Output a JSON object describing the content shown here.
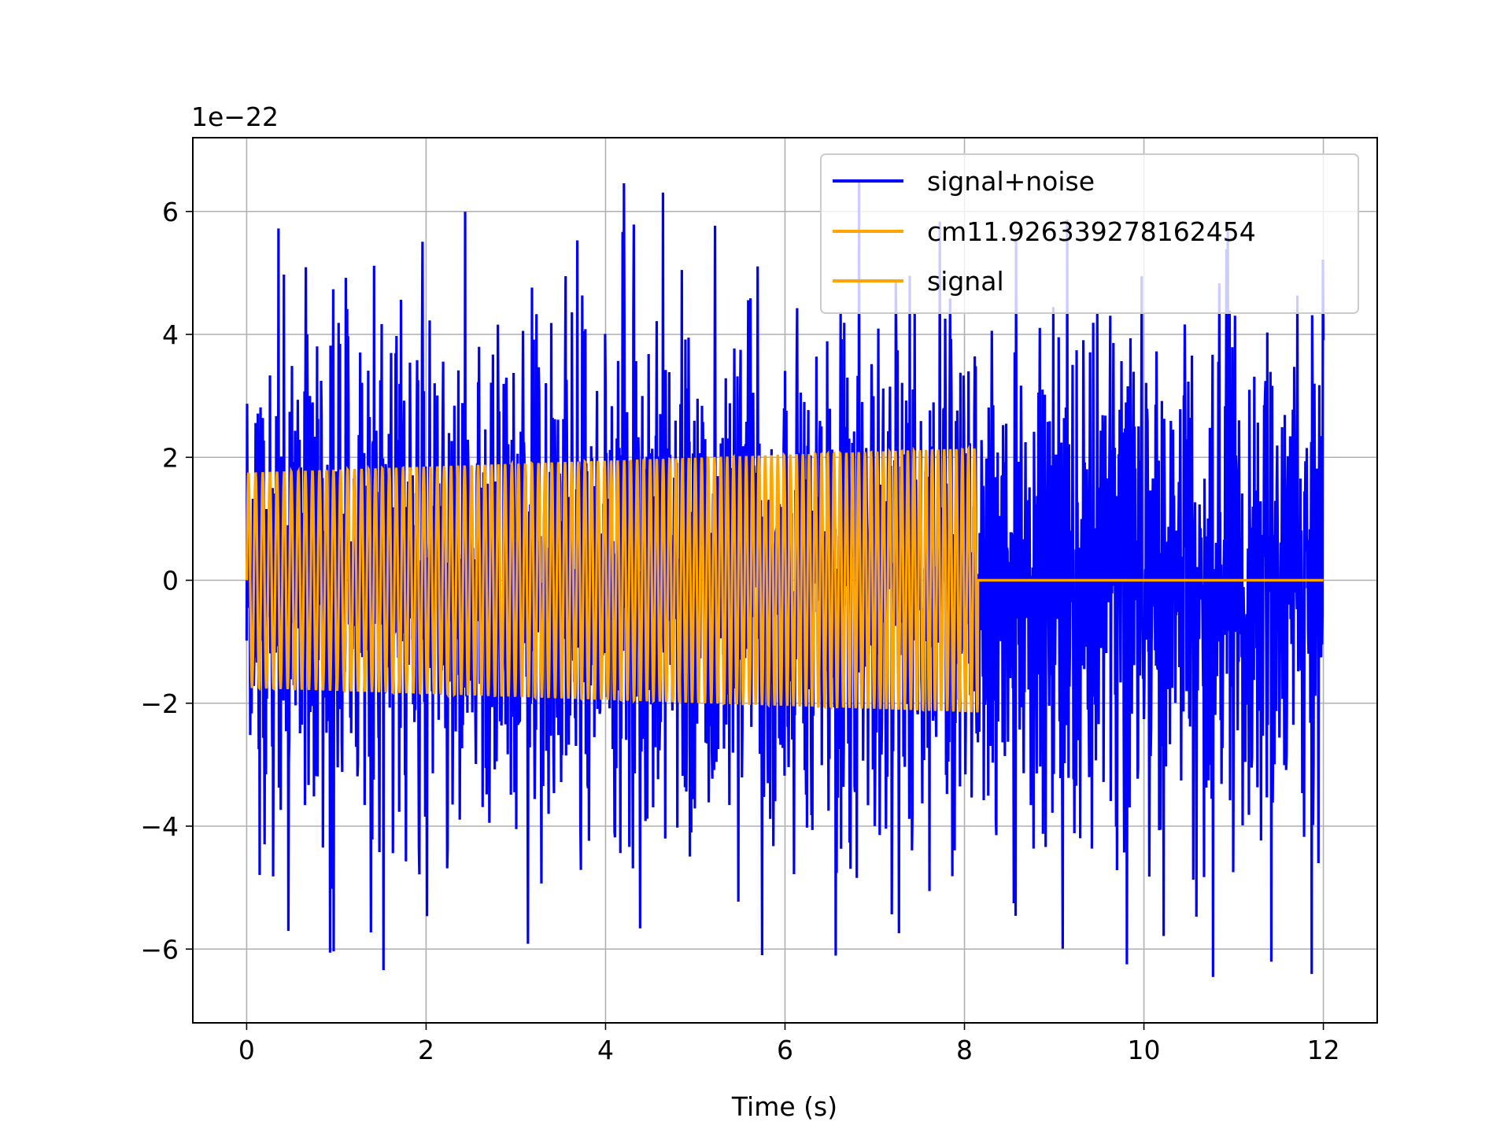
{
  "chart_data": {
    "type": "line",
    "title": "",
    "xlabel": "Time (s)",
    "ylabel": "",
    "y_offset_label": "1e−22",
    "y_scale_exponent": -22,
    "xlim": [
      -0.6,
      12.6
    ],
    "ylim": [
      -7.2,
      7.2
    ],
    "x_ticks": [
      0,
      2,
      4,
      6,
      8,
      10,
      12
    ],
    "x_tick_labels": [
      "0",
      "2",
      "4",
      "6",
      "8",
      "10",
      "12"
    ],
    "y_ticks": [
      -6,
      -4,
      -2,
      0,
      2,
      4,
      6
    ],
    "y_tick_labels": [
      "−6",
      "−4",
      "−2",
      "0",
      "2",
      "4",
      "6"
    ],
    "grid": true,
    "legend_position": "top-right",
    "series": [
      {
        "name": "signal+noise",
        "color": "#0000ff",
        "x_range": [
          0,
          12
        ],
        "description_values": {
          "approx_min": -6.5,
          "approx_max": 6.6,
          "approx_std": 2.0
        }
      },
      {
        "name": "cm11.926339278162454",
        "color": "#ffa500",
        "x_range": [
          0,
          12
        ]
      },
      {
        "name": "signal",
        "color": "#ffa500",
        "x_range": [
          0,
          12
        ],
        "chirp": {
          "t_end": 8.15,
          "amp_start": 1.75,
          "amp_end": 2.15
        }
      }
    ]
  }
}
